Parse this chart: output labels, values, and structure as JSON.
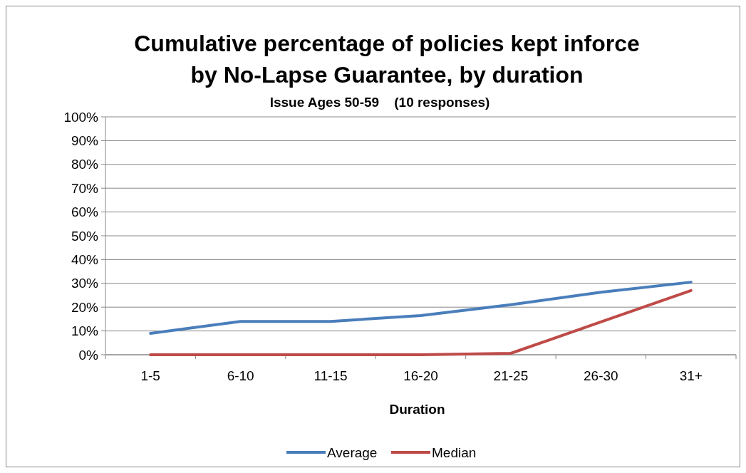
{
  "chart_data": {
    "type": "line",
    "title": "Cumulative percentage of policies kept inforce by No-Lapse Guarantee, by duration",
    "subtitle": "Issue Ages 50-59    (10 responses)",
    "xlabel": "Duration",
    "categories": [
      "1-5",
      "6-10",
      "11-15",
      "16-20",
      "21-25",
      "26-30",
      "31+"
    ],
    "series": [
      {
        "name": "Average",
        "color": "#4a7ebb",
        "values": [
          9,
          14,
          14,
          16.5,
          21,
          26.3,
          30.5
        ]
      },
      {
        "name": "Median",
        "color": "#be4b48",
        "values": [
          0,
          0,
          0,
          0,
          0.6,
          13.8,
          27
        ]
      }
    ],
    "ylim": [
      0,
      100
    ],
    "yticks": [
      {
        "value": 0,
        "label": "0%"
      },
      {
        "value": 10,
        "label": "10%"
      },
      {
        "value": 20,
        "label": "20%"
      },
      {
        "value": 30,
        "label": "30%"
      },
      {
        "value": 40,
        "label": "40%"
      },
      {
        "value": 50,
        "label": "50%"
      },
      {
        "value": 60,
        "label": "60%"
      },
      {
        "value": 70,
        "label": "70%"
      },
      {
        "value": 80,
        "label": "80%"
      },
      {
        "value": 90,
        "label": "90%"
      },
      {
        "value": 100,
        "label": "100%"
      }
    ],
    "grid": "y",
    "legend": "bottom",
    "marker": "none",
    "line_style": "solid"
  }
}
